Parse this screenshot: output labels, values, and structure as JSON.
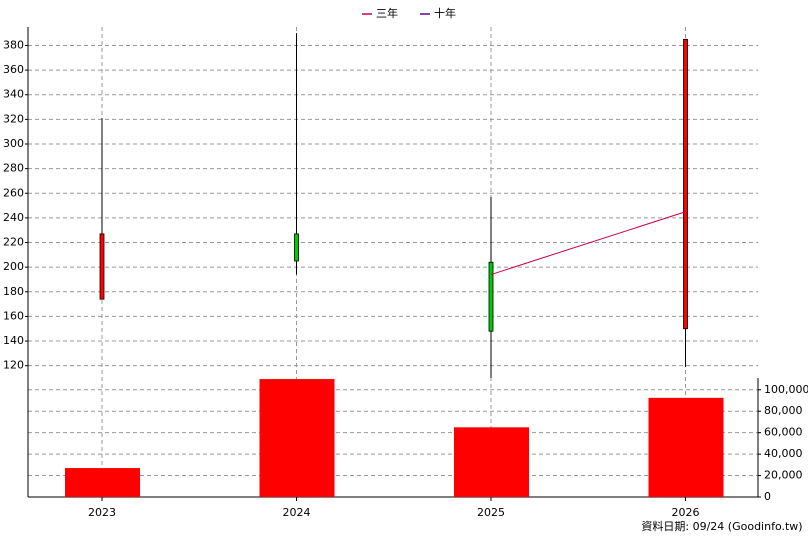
{
  "chart_data": {
    "type": "candlestick",
    "categories": [
      "2023",
      "2024",
      "2025",
      "2026"
    ],
    "candles": {
      "open": [
        174,
        227,
        204,
        150
      ],
      "high": [
        321,
        390,
        257,
        385
      ],
      "low": [
        174,
        194,
        110,
        119
      ],
      "close": [
        227,
        205,
        148,
        385
      ],
      "up_color": "#ff0000",
      "down_color": "#00cc00"
    },
    "series": [
      {
        "name": "三年",
        "color": "#cc0044",
        "values": [
          null,
          null,
          194,
          245
        ]
      },
      {
        "name": "十年",
        "color": "#660099",
        "values": [
          null,
          null,
          null,
          null
        ]
      }
    ],
    "ylim": [
      110,
      395
    ],
    "yticks": [
      120,
      140,
      160,
      180,
      200,
      220,
      240,
      260,
      280,
      300,
      320,
      340,
      360,
      380
    ],
    "volume": {
      "values": [
        27000,
        110000,
        65000,
        92500
      ],
      "color": "#ff0000",
      "ylim": [
        0,
        111000
      ],
      "yticks": [
        0,
        {
          "value": 20000,
          "label": "20,000"
        },
        {
          "value": 40000,
          "label": "40,000"
        },
        {
          "value": 60000,
          "label": "60,000"
        },
        {
          "value": 80000,
          "label": "80,000"
        },
        {
          "value": 100000,
          "label": "100,000"
        }
      ]
    },
    "grid": true,
    "footer": "資料日期: 09/24  (Goodinfo.tw)"
  }
}
